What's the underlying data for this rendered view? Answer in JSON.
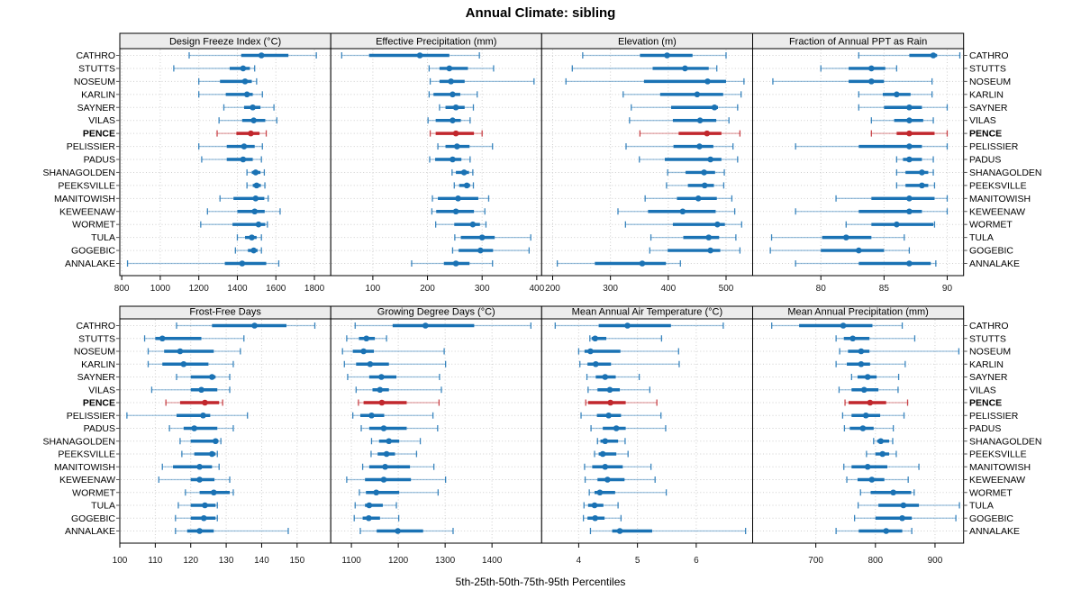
{
  "colors": {
    "series": "#1a72b4",
    "highlight": "#c1272d",
    "strip_bg": "#ececec",
    "grid": "#cfcfcf",
    "border": "#000000"
  },
  "chart_data": {
    "type": "scatter",
    "subtype": "percentile-pointrange-trellis",
    "suptitle": "Annual Climate: sibling",
    "xlabel": "5th-25th-50th-75th-95th Percentiles",
    "percentiles": [
      5,
      25,
      50,
      75,
      95
    ],
    "legend_position": "none",
    "grid": "dotted",
    "layout": {
      "rows": 2,
      "cols": 4
    },
    "highlight": "PENCE",
    "categories": [
      "CATHRO",
      "STUTTS",
      "NOSEUM",
      "KARLIN",
      "SAYNER",
      "VILAS",
      "PENCE",
      "PELISSIER",
      "PADUS",
      "SHANAGOLDEN",
      "PEEKSVILLE",
      "MANITOWISH",
      "KEWEENAW",
      "WORMET",
      "TULA",
      "GOGEBIC",
      "ANNALAKE"
    ],
    "panels": [
      {
        "title": "Design Freeze Index (°C)",
        "xlim": [
          790,
          1885
        ],
        "ticks": [
          800,
          1000,
          1200,
          1400,
          1600,
          1800
        ],
        "values": [
          [
            1150,
            1420,
            1525,
            1665,
            1810
          ],
          [
            1070,
            1360,
            1430,
            1465,
            1490
          ],
          [
            1200,
            1310,
            1440,
            1475,
            1500
          ],
          [
            1200,
            1340,
            1450,
            1480,
            1530
          ],
          [
            1330,
            1435,
            1480,
            1520,
            1590
          ],
          [
            1305,
            1425,
            1485,
            1545,
            1605
          ],
          [
            1295,
            1395,
            1470,
            1515,
            1550
          ],
          [
            1200,
            1345,
            1435,
            1490,
            1530
          ],
          [
            1215,
            1345,
            1430,
            1480,
            1525
          ],
          [
            1450,
            1475,
            1495,
            1520,
            1540
          ],
          [
            1450,
            1480,
            1500,
            1522,
            1543
          ],
          [
            1310,
            1380,
            1495,
            1540,
            1560
          ],
          [
            1245,
            1400,
            1490,
            1542,
            1622
          ],
          [
            1210,
            1375,
            1510,
            1545,
            1556
          ],
          [
            1400,
            1440,
            1475,
            1500,
            1525
          ],
          [
            1390,
            1455,
            1485,
            1505,
            1525
          ],
          [
            830,
            1335,
            1425,
            1550,
            1615
          ]
        ]
      },
      {
        "title": "Effective Precipitation (mm)",
        "xlim": [
          23,
          409
        ],
        "ticks": [
          100,
          200,
          300,
          400
        ],
        "values": [
          [
            43,
            93,
            186,
            240,
            295
          ],
          [
            203,
            222,
            240,
            274,
            321
          ],
          [
            205,
            222,
            243,
            268,
            395
          ],
          [
            203,
            211,
            246,
            260,
            291
          ],
          [
            222,
            233,
            252,
            268,
            284
          ],
          [
            201,
            215,
            246,
            261,
            278
          ],
          [
            205,
            215,
            252,
            285,
            300
          ],
          [
            219,
            233,
            254,
            277,
            319
          ],
          [
            204,
            214,
            246,
            262,
            278
          ],
          [
            245,
            252,
            267,
            276,
            283
          ],
          [
            249,
            258,
            272,
            278,
            284
          ],
          [
            209,
            219,
            256,
            293,
            312
          ],
          [
            208,
            216,
            252,
            285,
            305
          ],
          [
            215,
            249,
            283,
            296,
            307
          ],
          [
            250,
            261,
            300,
            323,
            389
          ],
          [
            246,
            257,
            297,
            320,
            386
          ],
          [
            171,
            230,
            252,
            277,
            319
          ]
        ]
      },
      {
        "title": "Elevation (m)",
        "xlim": [
          181,
          546
        ],
        "ticks": [
          200,
          300,
          400,
          500
        ],
        "values": [
          [
            252,
            351,
            398,
            442,
            500
          ],
          [
            234,
            373,
            429,
            470,
            484
          ],
          [
            223,
            358,
            468,
            500,
            531
          ],
          [
            322,
            386,
            450,
            495,
            526
          ],
          [
            336,
            405,
            480,
            486,
            520
          ],
          [
            333,
            408,
            455,
            483,
            505
          ],
          [
            351,
            418,
            467,
            492,
            524
          ],
          [
            327,
            409,
            454,
            478,
            512
          ],
          [
            350,
            394,
            473,
            492,
            520
          ],
          [
            399,
            430,
            462,
            481,
            497
          ],
          [
            397,
            434,
            463,
            479,
            496
          ],
          [
            360,
            415,
            452,
            484,
            510
          ],
          [
            313,
            365,
            425,
            482,
            515
          ],
          [
            326,
            408,
            485,
            498,
            527
          ],
          [
            370,
            426,
            470,
            488,
            517
          ],
          [
            368,
            399,
            473,
            490,
            524
          ],
          [
            208,
            273,
            355,
            396,
            421
          ]
        ]
      },
      {
        "title": "Fraction of Annual PPT as Rain",
        "xlim": [
          74.6,
          91.3
        ],
        "ticks": [
          80,
          85,
          90
        ],
        "values": [
          [
            83,
            87,
            88.9,
            89.2,
            91
          ],
          [
            80,
            82.2,
            84,
            85.1,
            86
          ],
          [
            76.2,
            82.2,
            84,
            85,
            88.8
          ],
          [
            83,
            84.9,
            86,
            87.1,
            88.8
          ],
          [
            83,
            85,
            87,
            88,
            90
          ],
          [
            84,
            85.8,
            87,
            88.1,
            88.9
          ],
          [
            84,
            86,
            87,
            89,
            90
          ],
          [
            78,
            83,
            87,
            88,
            90
          ],
          [
            86,
            86.5,
            87,
            88,
            88.9
          ],
          [
            86,
            86.7,
            88,
            88.5,
            88.9
          ],
          [
            86,
            86.7,
            88,
            88.5,
            89
          ],
          [
            81.2,
            84,
            87,
            89,
            90
          ],
          [
            78,
            83,
            87,
            88,
            90
          ],
          [
            82,
            84,
            86,
            88.9,
            89
          ],
          [
            76.1,
            80.1,
            82,
            84,
            86.6
          ],
          [
            76,
            80,
            83,
            85,
            87
          ],
          [
            78,
            83,
            87,
            88.7,
            89.1
          ]
        ]
      },
      {
        "title": "Frost-Free Days",
        "xlim": [
          100,
          159.5
        ],
        "ticks": [
          100,
          110,
          120,
          130,
          140,
          150
        ],
        "values": [
          [
            116,
            126,
            138,
            147,
            155
          ],
          [
            107,
            110,
            112,
            123,
            135
          ],
          [
            108,
            112.5,
            117,
            126.5,
            134
          ],
          [
            108,
            112,
            118,
            125,
            132
          ],
          [
            116,
            120,
            126,
            127,
            131
          ],
          [
            109,
            120,
            123,
            127.5,
            131
          ],
          [
            113,
            117,
            124,
            128,
            129
          ],
          [
            102,
            116,
            123.5,
            125.5,
            136
          ],
          [
            114,
            118,
            121,
            127.5,
            132
          ],
          [
            117,
            120,
            127,
            127.8,
            128.5
          ],
          [
            117.5,
            121,
            126,
            127,
            127.5
          ],
          [
            112,
            115,
            122.5,
            126,
            128
          ],
          [
            111,
            120,
            122.5,
            126.7,
            131
          ],
          [
            118.5,
            122.5,
            126.5,
            131,
            132
          ],
          [
            116.5,
            120,
            124,
            127,
            127.5
          ],
          [
            115.7,
            120,
            123.7,
            127,
            127.5
          ],
          [
            115.7,
            119,
            122.5,
            126.5,
            147.5
          ]
        ]
      },
      {
        "title": "Growing Degree Days (°C)",
        "xlim": [
          1056,
          1506
        ],
        "ticks": [
          1100,
          1200,
          1300,
          1400
        ],
        "values": [
          [
            1108,
            1188,
            1258,
            1362,
            1483
          ],
          [
            1090,
            1116,
            1132,
            1150,
            1175
          ],
          [
            1081,
            1103,
            1126,
            1148,
            1298
          ],
          [
            1085,
            1110,
            1140,
            1180,
            1301
          ],
          [
            1092,
            1138,
            1164,
            1196,
            1288
          ],
          [
            1110,
            1145,
            1161,
            1180,
            1292
          ],
          [
            1115,
            1126,
            1165,
            1218,
            1287
          ],
          [
            1103,
            1119,
            1143,
            1170,
            1274
          ],
          [
            1121,
            1138,
            1169,
            1218,
            1284
          ],
          [
            1143,
            1159,
            1180,
            1202,
            1247
          ],
          [
            1142,
            1156,
            1175,
            1193,
            1239
          ],
          [
            1124,
            1138,
            1172,
            1225,
            1276
          ],
          [
            1090,
            1129,
            1169,
            1227,
            1301
          ],
          [
            1117,
            1131,
            1153,
            1202,
            1285
          ],
          [
            1108,
            1129,
            1138,
            1167,
            1196
          ],
          [
            1106,
            1124,
            1137,
            1161,
            1201
          ],
          [
            1119,
            1154,
            1199,
            1253,
            1317
          ]
        ]
      },
      {
        "title": "Mean Annual Air Temperature (°C)",
        "xlim": [
          3.37,
          6.96
        ],
        "ticks": [
          4,
          5,
          6
        ],
        "values": [
          [
            3.6,
            4.34,
            4.83,
            5.57,
            6.46
          ],
          [
            4.19,
            4.22,
            4.28,
            4.47,
            5.41
          ],
          [
            4.0,
            4.1,
            4.2,
            4.71,
            5.7
          ],
          [
            4.02,
            4.15,
            4.29,
            4.55,
            5.71
          ],
          [
            4.14,
            4.29,
            4.45,
            4.63,
            5.03
          ],
          [
            4.16,
            4.32,
            4.53,
            4.7,
            5.21
          ],
          [
            4.12,
            4.16,
            4.54,
            4.8,
            5.33
          ],
          [
            4.04,
            4.31,
            4.51,
            4.72,
            5.4
          ],
          [
            4.21,
            4.41,
            4.64,
            4.8,
            5.48
          ],
          [
            4.32,
            4.37,
            4.45,
            4.67,
            4.79
          ],
          [
            4.27,
            4.34,
            4.41,
            4.64,
            4.84
          ],
          [
            4.1,
            4.23,
            4.45,
            4.75,
            5.23
          ],
          [
            4.11,
            4.32,
            4.49,
            4.78,
            5.3
          ],
          [
            4.18,
            4.27,
            4.36,
            4.62,
            5.49
          ],
          [
            4.09,
            4.16,
            4.27,
            4.42,
            4.67
          ],
          [
            4.08,
            4.15,
            4.28,
            4.44,
            4.72
          ],
          [
            4.2,
            4.57,
            4.7,
            5.25,
            6.84
          ]
        ]
      },
      {
        "title": "Mean Annual Precipitation (mm)",
        "xlim": [
          594,
          948
        ],
        "ticks": [
          700,
          800,
          900
        ],
        "values": [
          [
            626,
            672,
            746,
            795,
            845
          ],
          [
            734,
            747,
            762,
            790,
            866
          ],
          [
            740,
            754,
            776,
            790,
            940
          ],
          [
            734,
            752,
            776,
            791,
            850
          ],
          [
            760,
            770,
            787,
            802,
            839
          ],
          [
            739,
            760,
            781,
            805,
            838
          ],
          [
            749,
            755,
            791,
            818,
            854
          ],
          [
            745,
            760,
            784,
            808,
            848
          ],
          [
            748,
            757,
            779,
            797,
            830
          ],
          [
            797,
            803,
            809,
            823,
            829
          ],
          [
            785,
            800,
            812,
            823,
            835
          ],
          [
            747,
            760,
            787,
            820,
            873
          ],
          [
            752,
            770,
            794,
            815,
            855
          ],
          [
            775,
            792,
            830,
            860,
            865
          ],
          [
            771,
            805,
            847,
            873,
            941
          ],
          [
            765,
            800,
            845,
            861,
            935
          ],
          [
            734,
            772,
            818,
            845,
            861
          ]
        ]
      }
    ]
  }
}
